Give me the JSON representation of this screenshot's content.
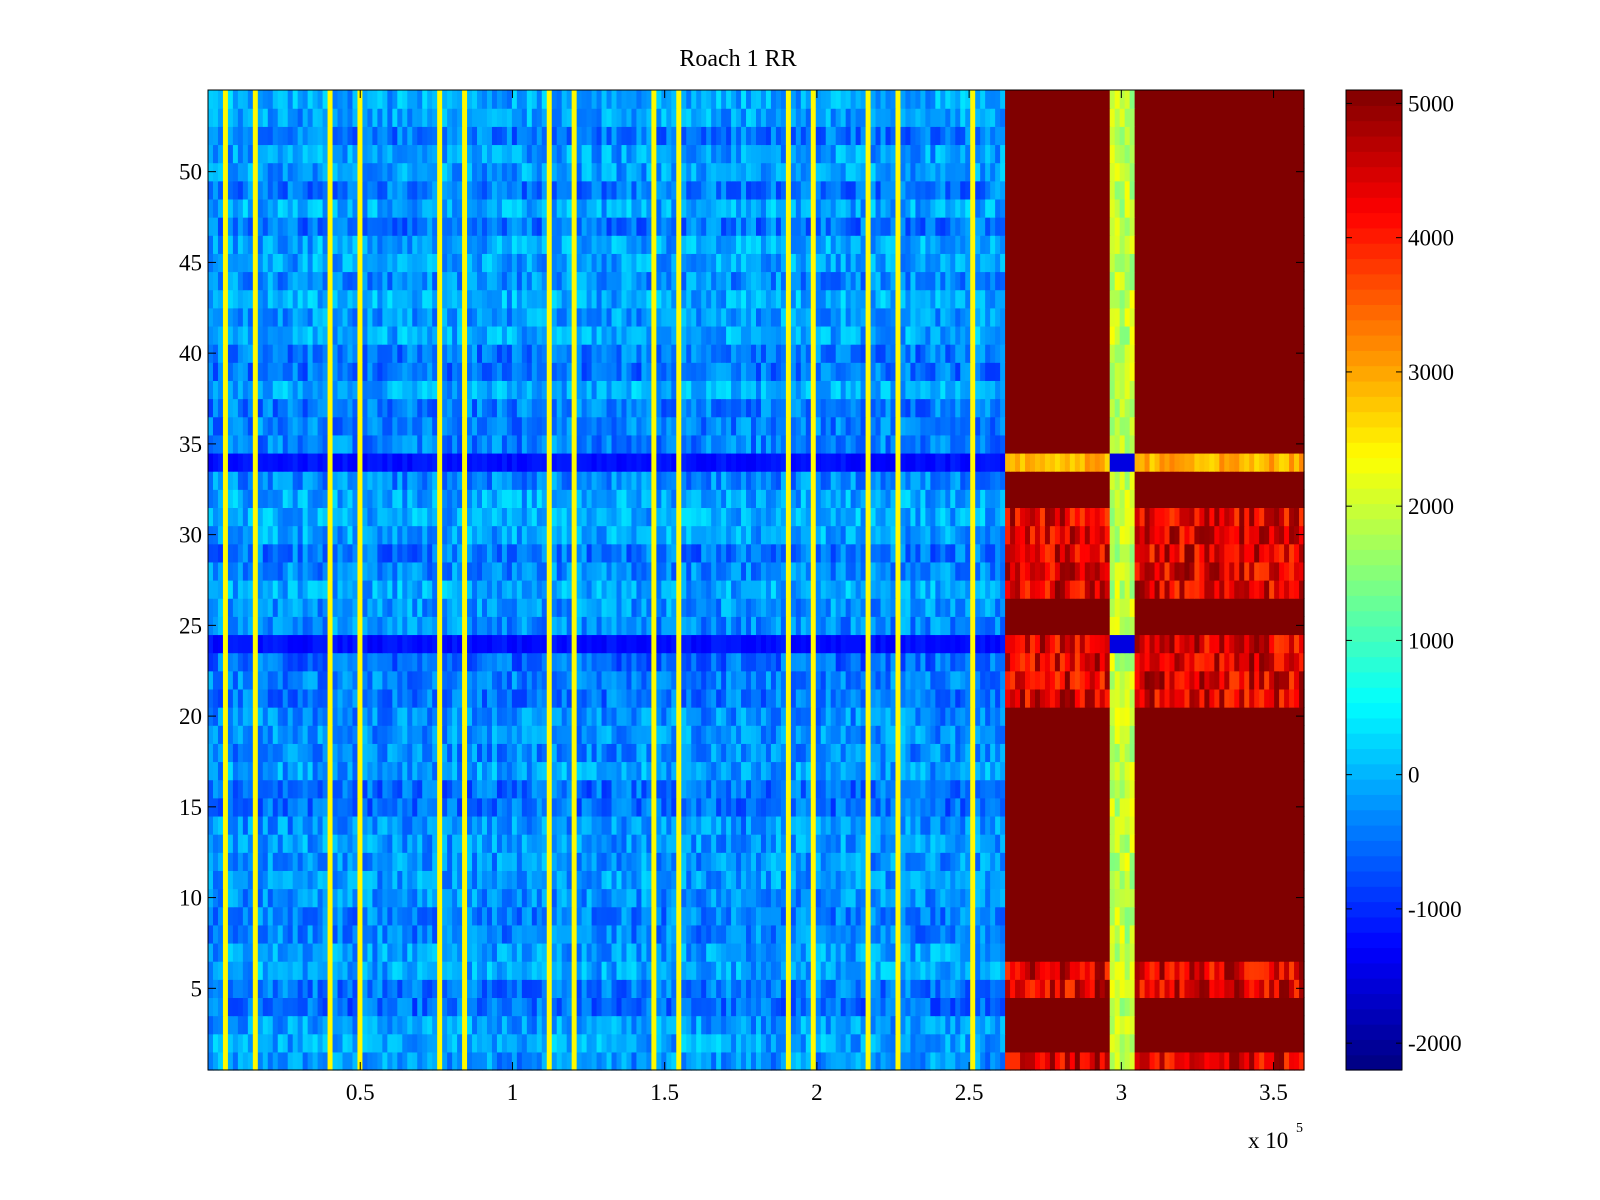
{
  "chart_data": {
    "type": "heatmap",
    "title": "Roach 1 RR",
    "xlabel": "",
    "ylabel": "",
    "x_multiplier_label": "x 10",
    "x_multiplier_exponent": "5",
    "xlim": [
      0,
      360000
    ],
    "ylim": [
      0.5,
      54.5
    ],
    "x_ticks": [
      {
        "value": 50000,
        "label": "0.5"
      },
      {
        "value": 100000,
        "label": "1"
      },
      {
        "value": 150000,
        "label": "1.5"
      },
      {
        "value": 200000,
        "label": "2"
      },
      {
        "value": 250000,
        "label": "2.5"
      },
      {
        "value": 300000,
        "label": "3"
      },
      {
        "value": 350000,
        "label": "3.5"
      }
    ],
    "y_ticks": [
      {
        "value": 5,
        "label": "5"
      },
      {
        "value": 10,
        "label": "10"
      },
      {
        "value": 15,
        "label": "15"
      },
      {
        "value": 20,
        "label": "20"
      },
      {
        "value": 25,
        "label": "25"
      },
      {
        "value": 30,
        "label": "30"
      },
      {
        "value": 35,
        "label": "35"
      },
      {
        "value": 40,
        "label": "40"
      },
      {
        "value": 45,
        "label": "45"
      },
      {
        "value": 50,
        "label": "50"
      }
    ],
    "colorbar": {
      "colormap": "jet",
      "clim": [
        -2200,
        5100
      ],
      "ticks": [
        {
          "value": -2000,
          "label": "-2000"
        },
        {
          "value": -1000,
          "label": "-1000"
        },
        {
          "value": 0,
          "label": "0"
        },
        {
          "value": 1000,
          "label": "1000"
        },
        {
          "value": 2000,
          "label": "2000"
        },
        {
          "value": 3000,
          "label": "3000"
        },
        {
          "value": 4000,
          "label": "4000"
        },
        {
          "value": 5000,
          "label": "5000"
        }
      ]
    },
    "rows": 54,
    "regions": {
      "background_level": -300,
      "spike_columns_x": [
        6000,
        15000,
        40000,
        50000,
        76000,
        85000,
        112000,
        120000,
        146000,
        155000,
        190000,
        199000,
        217000,
        226000,
        251000
      ],
      "spike_level": 2400,
      "saturated_start_x": 262000,
      "saturated_level": 5100,
      "center_band_x": [
        296000,
        305000
      ],
      "center_band_level": 1900,
      "dark_rows": [
        34,
        24
      ],
      "dark_row_level": -1200
    }
  }
}
